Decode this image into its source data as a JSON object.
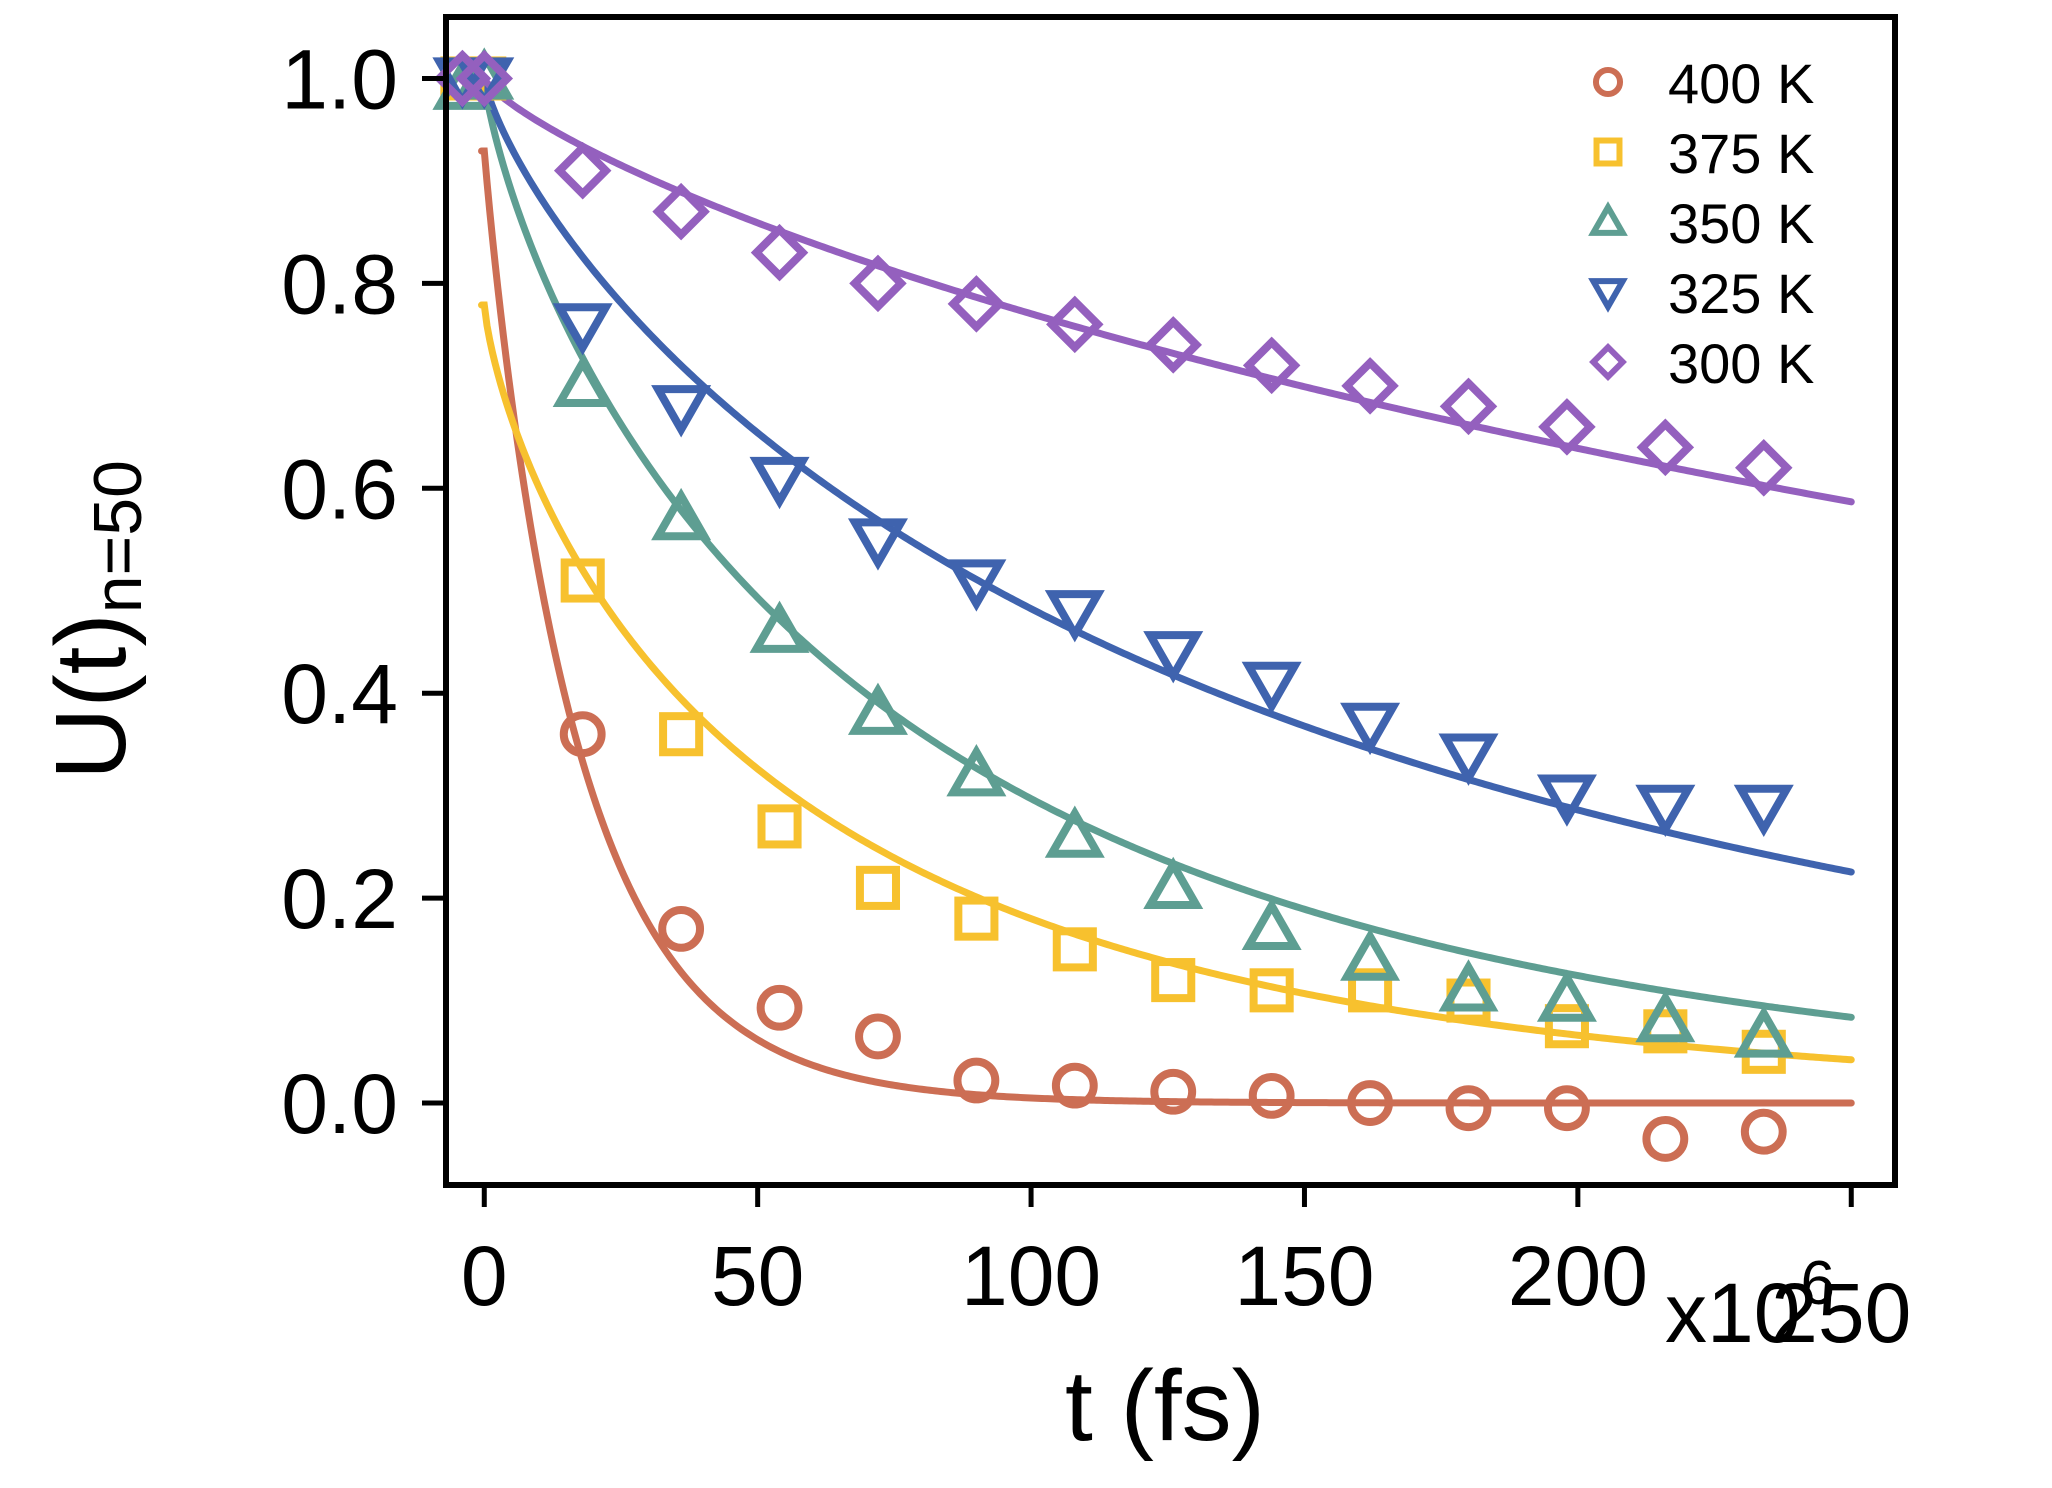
{
  "chart_data": {
    "type": "scatter",
    "title": "",
    "xlabel": "t (fs)",
    "ylabel_main": "U(t)",
    "ylabel_subscript": "n=50",
    "x_multiplier_prefix": "x10",
    "x_multiplier_exponent": "6",
    "xlim": [
      -7,
      258
    ],
    "ylim": [
      -0.08,
      1.06
    ],
    "xticks": [
      0,
      50,
      100,
      150,
      200,
      250
    ],
    "xtick_labels": [
      "0",
      "50",
      "100",
      "150",
      "200",
      "250"
    ],
    "yticks": [
      0.0,
      0.2,
      0.4,
      0.6,
      0.8,
      1.0
    ],
    "ytick_labels": [
      "0.0",
      "0.2",
      "0.4",
      "0.6",
      "0.8",
      "1.0"
    ],
    "legend_position": "top-right",
    "grid": false,
    "series": [
      {
        "name": "400 K",
        "color": "#cc6e54",
        "marker": "circle",
        "fit_tau": 17.5,
        "points": [
          [
            -4,
            1.0
          ],
          [
            0,
            1.0
          ],
          [
            18,
            0.36
          ],
          [
            36,
            0.17
          ],
          [
            54,
            0.093
          ],
          [
            72,
            0.065
          ],
          [
            90,
            0.022
          ],
          [
            108,
            0.017
          ],
          [
            126,
            0.011
          ],
          [
            144,
            0.007
          ],
          [
            162,
            0.0
          ],
          [
            180,
            -0.005
          ],
          [
            198,
            -0.005
          ],
          [
            216,
            -0.035
          ],
          [
            234,
            -0.028
          ]
        ]
      },
      {
        "name": "375 K",
        "color": "#f7c12e",
        "marker": "square",
        "fit_tau": 60,
        "points": [
          [
            -4,
            1.0
          ],
          [
            0,
            1.0
          ],
          [
            18,
            0.51
          ],
          [
            36,
            0.36
          ],
          [
            54,
            0.27
          ],
          [
            72,
            0.21
          ],
          [
            90,
            0.18
          ],
          [
            108,
            0.15
          ],
          [
            126,
            0.12
          ],
          [
            144,
            0.11
          ],
          [
            162,
            0.11
          ],
          [
            180,
            0.1
          ],
          [
            198,
            0.075
          ],
          [
            216,
            0.07
          ],
          [
            234,
            0.05
          ]
        ]
      },
      {
        "name": "350 K",
        "color": "#5e9e92",
        "marker": "triangle-up",
        "fit_tau": 78,
        "points": [
          [
            -4,
            0.99
          ],
          [
            0,
            1.0
          ],
          [
            18,
            0.7
          ],
          [
            36,
            0.57
          ],
          [
            54,
            0.46
          ],
          [
            72,
            0.38
          ],
          [
            90,
            0.32
          ],
          [
            108,
            0.26
          ],
          [
            126,
            0.21
          ],
          [
            144,
            0.17
          ],
          [
            162,
            0.14
          ],
          [
            180,
            0.11
          ],
          [
            198,
            0.1
          ],
          [
            216,
            0.08
          ],
          [
            234,
            0.065
          ]
        ]
      },
      {
        "name": "325 K",
        "color": "#3f63ae",
        "marker": "triangle-down",
        "fit_tau": 150,
        "points": [
          [
            -4,
            1.0
          ],
          [
            0,
            1.0
          ],
          [
            18,
            0.76
          ],
          [
            36,
            0.68
          ],
          [
            54,
            0.61
          ],
          [
            72,
            0.55
          ],
          [
            90,
            0.51
          ],
          [
            108,
            0.48
          ],
          [
            126,
            0.44
          ],
          [
            144,
            0.41
          ],
          [
            162,
            0.37
          ],
          [
            180,
            0.34
          ],
          [
            198,
            0.3
          ],
          [
            216,
            0.29
          ],
          [
            234,
            0.29
          ]
        ]
      },
      {
        "name": "300 K",
        "color": "#9460be",
        "marker": "diamond",
        "fit_tau": 560,
        "points": [
          [
            -4,
            1.0
          ],
          [
            0,
            1.0
          ],
          [
            18,
            0.91
          ],
          [
            36,
            0.87
          ],
          [
            54,
            0.83
          ],
          [
            72,
            0.8
          ],
          [
            90,
            0.78
          ],
          [
            108,
            0.76
          ],
          [
            126,
            0.74
          ],
          [
            144,
            0.72
          ],
          [
            162,
            0.7
          ],
          [
            180,
            0.68
          ],
          [
            198,
            0.66
          ],
          [
            216,
            0.64
          ],
          [
            234,
            0.62
          ]
        ]
      }
    ]
  }
}
